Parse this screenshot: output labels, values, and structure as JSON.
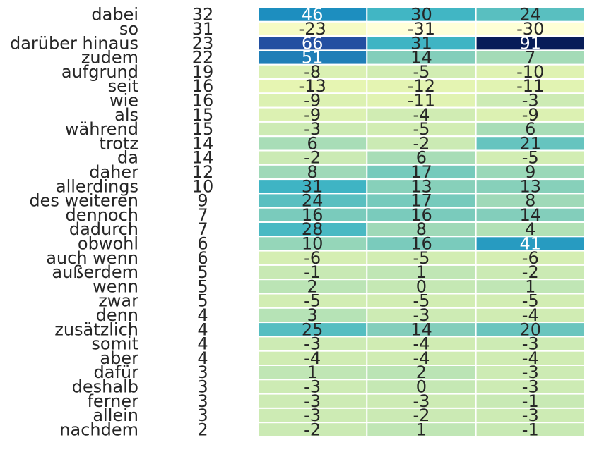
{
  "chart_data": {
    "type": "heatmap",
    "rows": [
      {
        "label": "dabei",
        "count": "32",
        "values": [
          46,
          30,
          24
        ]
      },
      {
        "label": "so",
        "count": "31",
        "values": [
          -23,
          -31,
          -30
        ]
      },
      {
        "label": "darüber hinaus",
        "count": "23",
        "values": [
          66,
          31,
          91
        ]
      },
      {
        "label": "zudem",
        "count": "22",
        "values": [
          51,
          14,
          7
        ]
      },
      {
        "label": "aufgrund",
        "count": "19",
        "values": [
          -8,
          -5,
          -10
        ]
      },
      {
        "label": "seit",
        "count": "16",
        "values": [
          -13,
          -12,
          -11
        ]
      },
      {
        "label": "wie",
        "count": "16",
        "values": [
          -9,
          -11,
          -3
        ]
      },
      {
        "label": "als",
        "count": "15",
        "values": [
          -9,
          -4,
          -9
        ]
      },
      {
        "label": "während",
        "count": "15",
        "values": [
          -3,
          -5,
          6
        ]
      },
      {
        "label": "trotz",
        "count": "14",
        "values": [
          6,
          -2,
          21
        ]
      },
      {
        "label": "da",
        "count": "14",
        "values": [
          -2,
          6,
          -5
        ]
      },
      {
        "label": "daher",
        "count": "12",
        "values": [
          8,
          17,
          9
        ]
      },
      {
        "label": "allerdings",
        "count": "10",
        "values": [
          31,
          13,
          13
        ]
      },
      {
        "label": "des weiteren",
        "count": "9",
        "values": [
          24,
          17,
          8
        ]
      },
      {
        "label": "dennoch",
        "count": "7",
        "values": [
          16,
          16,
          14
        ]
      },
      {
        "label": "dadurch",
        "count": "7",
        "values": [
          28,
          8,
          4
        ]
      },
      {
        "label": "obwohl",
        "count": "6",
        "values": [
          10,
          16,
          41
        ]
      },
      {
        "label": "auch wenn",
        "count": "6",
        "values": [
          -6,
          -5,
          -6
        ]
      },
      {
        "label": "außerdem",
        "count": "5",
        "values": [
          -1,
          1,
          -2
        ]
      },
      {
        "label": "wenn",
        "count": "5",
        "values": [
          2,
          0,
          1
        ]
      },
      {
        "label": "zwar",
        "count": "5",
        "values": [
          -5,
          -5,
          -5
        ]
      },
      {
        "label": "denn",
        "count": "4",
        "values": [
          3,
          -3,
          -4
        ]
      },
      {
        "label": "zusätzlich",
        "count": "4",
        "values": [
          25,
          14,
          20
        ]
      },
      {
        "label": "somit",
        "count": "4",
        "values": [
          -3,
          -4,
          -3
        ]
      },
      {
        "label": "aber",
        "count": "4",
        "values": [
          -4,
          -4,
          -4
        ]
      },
      {
        "label": "dafür",
        "count": "3",
        "values": [
          1,
          2,
          -3
        ]
      },
      {
        "label": "deshalb",
        "count": "3",
        "values": [
          -3,
          0,
          -3
        ]
      },
      {
        "label": "ferner",
        "count": "3",
        "values": [
          -3,
          -3,
          -1
        ]
      },
      {
        "label": "allein",
        "count": "3",
        "values": [
          -3,
          -2,
          -3
        ]
      },
      {
        "label": "nachdem",
        "count": "2",
        "values": [
          -2,
          1,
          -1
        ]
      }
    ],
    "colormap": "YlGnBu",
    "value_range": [
      -31,
      91
    ],
    "grid": true,
    "colors": {
      "dark_text": "#262626",
      "light_text": "#ffffff",
      "cell_border": "#ffffff"
    }
  }
}
